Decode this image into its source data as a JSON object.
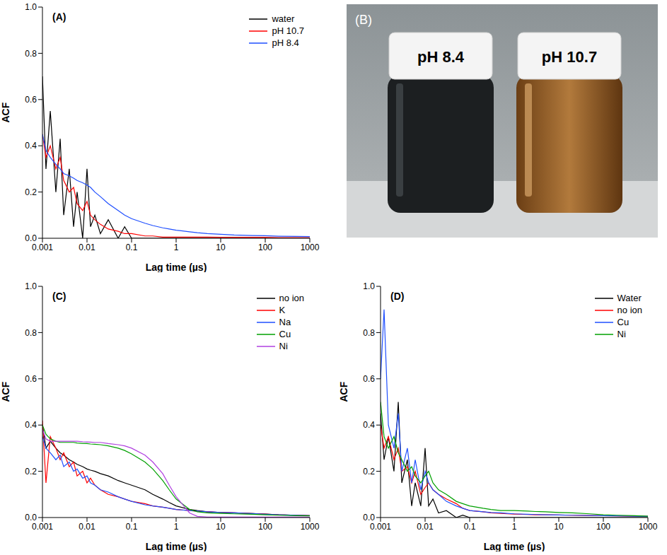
{
  "chart_data": [
    {
      "type": "line",
      "title": "(A)",
      "xlabel": "Lag time (µs)",
      "ylabel": "ACF",
      "log": "x",
      "legend": "upper right",
      "xlim": [
        0.001,
        1000
      ],
      "xticks": [
        0.001,
        0.01,
        0.1,
        1,
        10,
        100,
        1000
      ],
      "ylim": [
        0,
        1
      ],
      "yticks": [
        {
          "value": 0,
          "label": "0.0"
        },
        {
          "value": 0.2,
          "label": "0.2"
        },
        {
          "value": 0.4,
          "label": "0.4"
        },
        {
          "value": 0.6,
          "label": "0.6"
        },
        {
          "value": 0.8,
          "label": "0.8"
        },
        {
          "value": 1,
          "label": "1.0"
        }
      ],
      "x": [
        0.001,
        0.0012,
        0.0015,
        0.002,
        0.0025,
        0.003,
        0.004,
        0.005,
        0.006,
        0.008,
        0.01,
        0.012,
        0.015,
        0.02,
        0.03,
        0.05,
        0.07,
        0.1,
        0.2,
        0.3,
        0.5,
        0.7,
        1,
        2,
        3,
        5,
        10,
        20,
        50,
        100,
        200,
        500,
        1000
      ],
      "series": [
        {
          "name": "water",
          "color": "#000000",
          "values": [
            0.7,
            0.3,
            0.55,
            0.2,
            0.43,
            0.1,
            0.3,
            0.05,
            0.2,
            0.0,
            0.3,
            0.05,
            0.1,
            0.02,
            0.08,
            0.0,
            0.05,
            0.0,
            0.0,
            0.0,
            0.0,
            0.0,
            0.0,
            0.0,
            0.0,
            0.0,
            0.0,
            0.0,
            0.0,
            0.0,
            0.0,
            0.0,
            0.0
          ]
        },
        {
          "name": "pH 10.7",
          "color": "#ff0000",
          "values": [
            0.45,
            0.35,
            0.4,
            0.3,
            0.35,
            0.25,
            0.2,
            0.22,
            0.15,
            0.12,
            0.16,
            0.1,
            0.08,
            0.06,
            0.04,
            0.03,
            0.02,
            0.02,
            0.01,
            0.01,
            0.005,
            0.005,
            0.005,
            0.005,
            0.005,
            0.005,
            0.004,
            0.004,
            0.004,
            0.004,
            0.003,
            0.003,
            0.003
          ]
        },
        {
          "name": "pH 8.4",
          "color": "#1f4fff",
          "values": [
            0.45,
            0.38,
            0.35,
            0.32,
            0.3,
            0.28,
            0.27,
            0.26,
            0.25,
            0.24,
            0.23,
            0.22,
            0.2,
            0.18,
            0.15,
            0.12,
            0.1,
            0.085,
            0.065,
            0.055,
            0.045,
            0.04,
            0.035,
            0.028,
            0.024,
            0.02,
            0.017,
            0.014,
            0.012,
            0.011,
            0.009,
            0.008,
            0.007
          ]
        }
      ]
    },
    {
      "type": "line",
      "title": "(C)",
      "xlabel": "Lag time (µs)",
      "ylabel": "ACF",
      "log": "x",
      "legend": "upper right",
      "xlim": [
        0.001,
        1000
      ],
      "xticks": [
        0.001,
        0.01,
        0.1,
        1,
        10,
        100,
        1000
      ],
      "ylim": [
        0,
        1
      ],
      "yticks": [
        {
          "value": 0,
          "label": "0.0"
        },
        {
          "value": 0.2,
          "label": "0.2"
        },
        {
          "value": 0.4,
          "label": "0.4"
        },
        {
          "value": 0.6,
          "label": "0.6"
        },
        {
          "value": 0.8,
          "label": "0.8"
        },
        {
          "value": 1,
          "label": "1.0"
        }
      ],
      "x": [
        0.001,
        0.0012,
        0.0015,
        0.002,
        0.0025,
        0.003,
        0.004,
        0.005,
        0.006,
        0.008,
        0.01,
        0.012,
        0.015,
        0.02,
        0.03,
        0.05,
        0.07,
        0.1,
        0.2,
        0.3,
        0.5,
        0.7,
        1,
        2,
        3,
        5,
        10,
        20,
        50,
        100,
        200,
        500,
        1000
      ],
      "series": [
        {
          "name": "no ion",
          "color": "#000000",
          "values": [
            0.4,
            0.3,
            0.33,
            0.3,
            0.28,
            0.27,
            0.25,
            0.24,
            0.23,
            0.22,
            0.21,
            0.205,
            0.2,
            0.19,
            0.18,
            0.16,
            0.15,
            0.14,
            0.12,
            0.1,
            0.08,
            0.065,
            0.05,
            0.035,
            0.03,
            0.025,
            0.022,
            0.02,
            0.017,
            0.015,
            0.012,
            0.01,
            0.008
          ]
        },
        {
          "name": "K",
          "color": "#ff0000",
          "values": [
            0.42,
            0.15,
            0.35,
            0.3,
            0.25,
            0.28,
            0.22,
            0.24,
            0.18,
            0.2,
            0.15,
            0.17,
            0.14,
            0.12,
            0.1,
            0.09,
            0.08,
            0.07,
            0.06,
            0.05,
            0.045,
            0.04,
            0.035,
            0.03,
            0.027,
            0.025,
            0.022,
            0.02,
            0.017,
            0.015,
            0.012,
            0.01,
            0.008
          ]
        },
        {
          "name": "Na",
          "color": "#1f4fff",
          "values": [
            0.35,
            0.3,
            0.28,
            0.25,
            0.27,
            0.22,
            0.24,
            0.2,
            0.21,
            0.17,
            0.18,
            0.15,
            0.14,
            0.12,
            0.11,
            0.09,
            0.08,
            0.07,
            0.055,
            0.05,
            0.045,
            0.04,
            0.035,
            0.03,
            0.028,
            0.025,
            0.022,
            0.02,
            0.017,
            0.014,
            0.012,
            0.01,
            0.008
          ]
        },
        {
          "name": "Cu",
          "color": "#00a000",
          "values": [
            0.4,
            0.36,
            0.34,
            0.33,
            0.325,
            0.325,
            0.325,
            0.325,
            0.322,
            0.321,
            0.32,
            0.318,
            0.317,
            0.315,
            0.31,
            0.3,
            0.29,
            0.275,
            0.24,
            0.21,
            0.16,
            0.12,
            0.08,
            0.035,
            0.025,
            0.02,
            0.018,
            0.016,
            0.014,
            0.012,
            0.01,
            0.008,
            0.007
          ]
        },
        {
          "name": "Ni",
          "color": "#b040e0",
          "values": [
            0.38,
            0.34,
            0.33,
            0.33,
            0.33,
            0.33,
            0.33,
            0.33,
            0.33,
            0.328,
            0.327,
            0.326,
            0.325,
            0.325,
            0.32,
            0.315,
            0.31,
            0.3,
            0.27,
            0.24,
            0.19,
            0.14,
            0.09,
            0.02,
            0.005,
            0.002,
            0.002,
            0.002,
            0.002,
            0.002,
            0.002,
            0.002,
            0.002
          ]
        }
      ]
    },
    {
      "type": "line",
      "title": "(D)",
      "xlabel": "Lag time (µs)",
      "ylabel": "ACF",
      "log": "x",
      "legend": "upper right",
      "xlim": [
        0.001,
        1000
      ],
      "xticks": [
        0.001,
        0.01,
        0.1,
        1,
        10,
        100,
        1000
      ],
      "ylim": [
        0,
        1
      ],
      "yticks": [
        {
          "value": 0,
          "label": "0.0"
        },
        {
          "value": 0.2,
          "label": "0.2"
        },
        {
          "value": 0.4,
          "label": "0.4"
        },
        {
          "value": 0.6,
          "label": "0.6"
        },
        {
          "value": 0.8,
          "label": "0.8"
        },
        {
          "value": 1,
          "label": "1.0"
        }
      ],
      "x": [
        0.001,
        0.0012,
        0.0015,
        0.002,
        0.0025,
        0.003,
        0.004,
        0.005,
        0.006,
        0.008,
        0.01,
        0.012,
        0.015,
        0.02,
        0.03,
        0.05,
        0.07,
        0.1,
        0.2,
        0.3,
        0.5,
        0.7,
        1,
        2,
        3,
        5,
        10,
        20,
        50,
        100,
        200,
        500,
        1000
      ],
      "series": [
        {
          "name": "Water",
          "color": "#000000",
          "values": [
            0.45,
            0.25,
            0.35,
            0.2,
            0.5,
            0.15,
            0.25,
            0.05,
            0.15,
            0.05,
            0.3,
            0.05,
            0.08,
            0.02,
            0.03,
            0.0,
            0.01,
            0.0,
            0.0,
            0.0,
            0.0,
            0.0,
            0.0,
            0.0,
            0.0,
            0.0,
            0.0,
            0.0,
            0.0,
            0.0,
            0.0,
            0.0,
            0.0
          ]
        },
        {
          "name": "no ion",
          "color": "#ff0000",
          "values": [
            0.4,
            0.3,
            0.35,
            0.25,
            0.3,
            0.2,
            0.22,
            0.15,
            0.2,
            0.1,
            0.13,
            0.15,
            0.12,
            0.1,
            0.08,
            0.06,
            0.04,
            0.03,
            0.025,
            0.02,
            0.018,
            0.016,
            0.015,
            0.013,
            0.012,
            0.012,
            0.011,
            0.01,
            0.009,
            0.008,
            0.007,
            0.006,
            0.005
          ]
        },
        {
          "name": "Cu",
          "color": "#1f4fff",
          "values": [
            0.6,
            0.9,
            0.4,
            0.3,
            0.45,
            0.2,
            0.3,
            0.15,
            0.25,
            0.12,
            0.2,
            0.15,
            0.12,
            0.1,
            0.07,
            0.05,
            0.04,
            0.03,
            0.025,
            0.022,
            0.02,
            0.018,
            0.016,
            0.014,
            0.013,
            0.012,
            0.011,
            0.01,
            0.009,
            0.008,
            0.007,
            0.006,
            0.005
          ]
        },
        {
          "name": "Ni",
          "color": "#00a000",
          "values": [
            0.5,
            0.35,
            0.3,
            0.35,
            0.28,
            0.25,
            0.2,
            0.22,
            0.18,
            0.15,
            0.18,
            0.2,
            0.15,
            0.12,
            0.1,
            0.07,
            0.06,
            0.05,
            0.04,
            0.035,
            0.03,
            0.03,
            0.03,
            0.028,
            0.026,
            0.025,
            0.022,
            0.02,
            0.016,
            0.012,
            0.01,
            0.008,
            0.006
          ]
        }
      ]
    }
  ],
  "photo": {
    "letter": "(B)",
    "labels": [
      "pH 8.4",
      "pH 10.7"
    ]
  }
}
